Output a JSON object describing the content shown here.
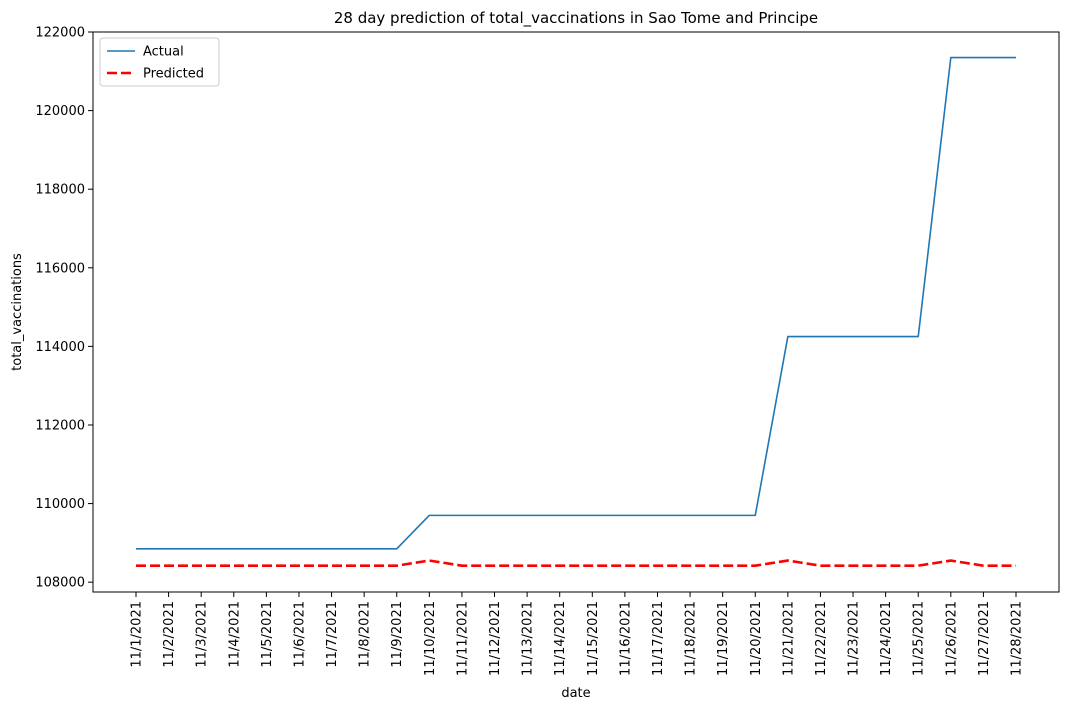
{
  "chart_data": {
    "type": "line",
    "title": "28 day prediction of total_vaccinations in Sao Tome and Principe",
    "xlabel": "date",
    "ylabel": "total_vaccinations",
    "categories": [
      "11/1/2021",
      "11/2/2021",
      "11/3/2021",
      "11/4/2021",
      "11/5/2021",
      "11/6/2021",
      "11/7/2021",
      "11/8/2021",
      "11/9/2021",
      "11/10/2021",
      "11/11/2021",
      "11/12/2021",
      "11/13/2021",
      "11/14/2021",
      "11/15/2021",
      "11/16/2021",
      "11/17/2021",
      "11/18/2021",
      "11/19/2021",
      "11/20/2021",
      "11/21/2021",
      "11/22/2021",
      "11/23/2021",
      "11/24/2021",
      "11/25/2021",
      "11/26/2021",
      "11/27/2021",
      "11/28/2021"
    ],
    "yticks": [
      108000,
      110000,
      112000,
      114000,
      116000,
      118000,
      120000,
      122000
    ],
    "ylim": [
      107750,
      122000
    ],
    "grid": false,
    "legend_position": "top-left",
    "series": [
      {
        "name": "Actual",
        "color": "#1f77b4",
        "style": "solid",
        "values": [
          108850,
          108850,
          108850,
          108850,
          108850,
          108850,
          108850,
          108850,
          108850,
          109700,
          109700,
          109700,
          109700,
          109700,
          109700,
          109700,
          109700,
          109700,
          109700,
          109700,
          114250,
          114250,
          114250,
          114250,
          114250,
          121350,
          121350,
          121350
        ]
      },
      {
        "name": "Predicted",
        "color": "#ff0000",
        "style": "dashed",
        "values": [
          108420,
          108420,
          108420,
          108420,
          108420,
          108420,
          108420,
          108420,
          108420,
          108550,
          108420,
          108420,
          108420,
          108420,
          108420,
          108420,
          108420,
          108420,
          108420,
          108420,
          108550,
          108420,
          108420,
          108420,
          108420,
          108550,
          108420,
          108420
        ]
      }
    ]
  }
}
